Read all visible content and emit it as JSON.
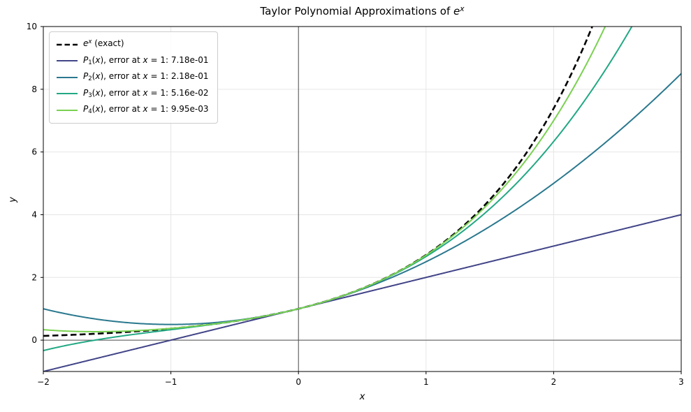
{
  "figure": {
    "background": "#ffffff"
  },
  "chart_data": {
    "type": "line",
    "title": "Taylor Polynomial Approximations of e^x",
    "title_parts": [
      {
        "text": "Taylor Polynomial Approximations of ",
        "italic": false
      },
      {
        "text": "e",
        "italic": true
      },
      {
        "text": "x",
        "italic": true,
        "script": "sup"
      }
    ],
    "xlabel": "x",
    "ylabel": "y",
    "xlim": [
      -2,
      3
    ],
    "ylim": [
      -1,
      10
    ],
    "xticks": {
      "values": [
        -2,
        -1,
        0,
        1,
        2,
        3
      ],
      "labels": [
        "−2",
        "−1",
        "0",
        "1",
        "2",
        "3"
      ]
    },
    "yticks": {
      "values": [
        0,
        2,
        4,
        6,
        8,
        10
      ],
      "labels": [
        "0",
        "2",
        "4",
        "6",
        "8",
        "10"
      ]
    },
    "grid": {
      "visible": true,
      "color": "#e6e6e6"
    },
    "zero_lines": {
      "visible": true,
      "color": "#4d4d4d"
    },
    "legend_position": "upper left",
    "series": [
      {
        "id": "exact",
        "fn": "exp",
        "color": "#000000",
        "style": "dashed",
        "line_width": 2.6,
        "legend_parts": [
          {
            "text": "e",
            "italic": true
          },
          {
            "text": "x",
            "italic": true,
            "script": "sup"
          },
          {
            "text": " (exact)",
            "italic": false
          }
        ]
      },
      {
        "id": "P1",
        "fn": "taylor",
        "degree": 1,
        "color": "#414487",
        "style": "solid",
        "line_width": 2,
        "error_at_x_equals_1": "7.18e-01",
        "legend_parts": [
          {
            "text": "P",
            "italic": true
          },
          {
            "text": "1",
            "italic": false,
            "script": "sub"
          },
          {
            "text": "(",
            "italic": false
          },
          {
            "text": "x",
            "italic": true
          },
          {
            "text": "), error at ",
            "italic": false
          },
          {
            "text": "x",
            "italic": true
          },
          {
            "text": " = 1: 7.18e-01",
            "italic": false
          }
        ]
      },
      {
        "id": "P2",
        "fn": "taylor",
        "degree": 2,
        "color": "#2a788e",
        "style": "solid",
        "line_width": 2,
        "error_at_x_equals_1": "2.18e-01",
        "legend_parts": [
          {
            "text": "P",
            "italic": true
          },
          {
            "text": "2",
            "italic": false,
            "script": "sub"
          },
          {
            "text": "(",
            "italic": false
          },
          {
            "text": "x",
            "italic": true
          },
          {
            "text": "), error at ",
            "italic": false
          },
          {
            "text": "x",
            "italic": true
          },
          {
            "text": " = 1: 2.18e-01",
            "italic": false
          }
        ]
      },
      {
        "id": "P3",
        "fn": "taylor",
        "degree": 3,
        "color": "#22a884",
        "style": "solid",
        "line_width": 2,
        "error_at_x_equals_1": "5.16e-02",
        "legend_parts": [
          {
            "text": "P",
            "italic": true
          },
          {
            "text": "3",
            "italic": false,
            "script": "sub"
          },
          {
            "text": "(",
            "italic": false
          },
          {
            "text": "x",
            "italic": true
          },
          {
            "text": "), error at ",
            "italic": false
          },
          {
            "text": "x",
            "italic": true
          },
          {
            "text": " = 1: 5.16e-02",
            "italic": false
          }
        ]
      },
      {
        "id": "P4",
        "fn": "taylor",
        "degree": 4,
        "color": "#7ad151",
        "style": "solid",
        "line_width": 2,
        "error_at_x_equals_1": "9.95e-03",
        "legend_parts": [
          {
            "text": "P",
            "italic": true
          },
          {
            "text": "4",
            "italic": false,
            "script": "sub"
          },
          {
            "text": "(",
            "italic": false
          },
          {
            "text": "x",
            "italic": true
          },
          {
            "text": "), error at ",
            "italic": false
          },
          {
            "text": "x",
            "italic": true
          },
          {
            "text": " = 1: 9.95e-03",
            "italic": false
          }
        ]
      }
    ]
  }
}
